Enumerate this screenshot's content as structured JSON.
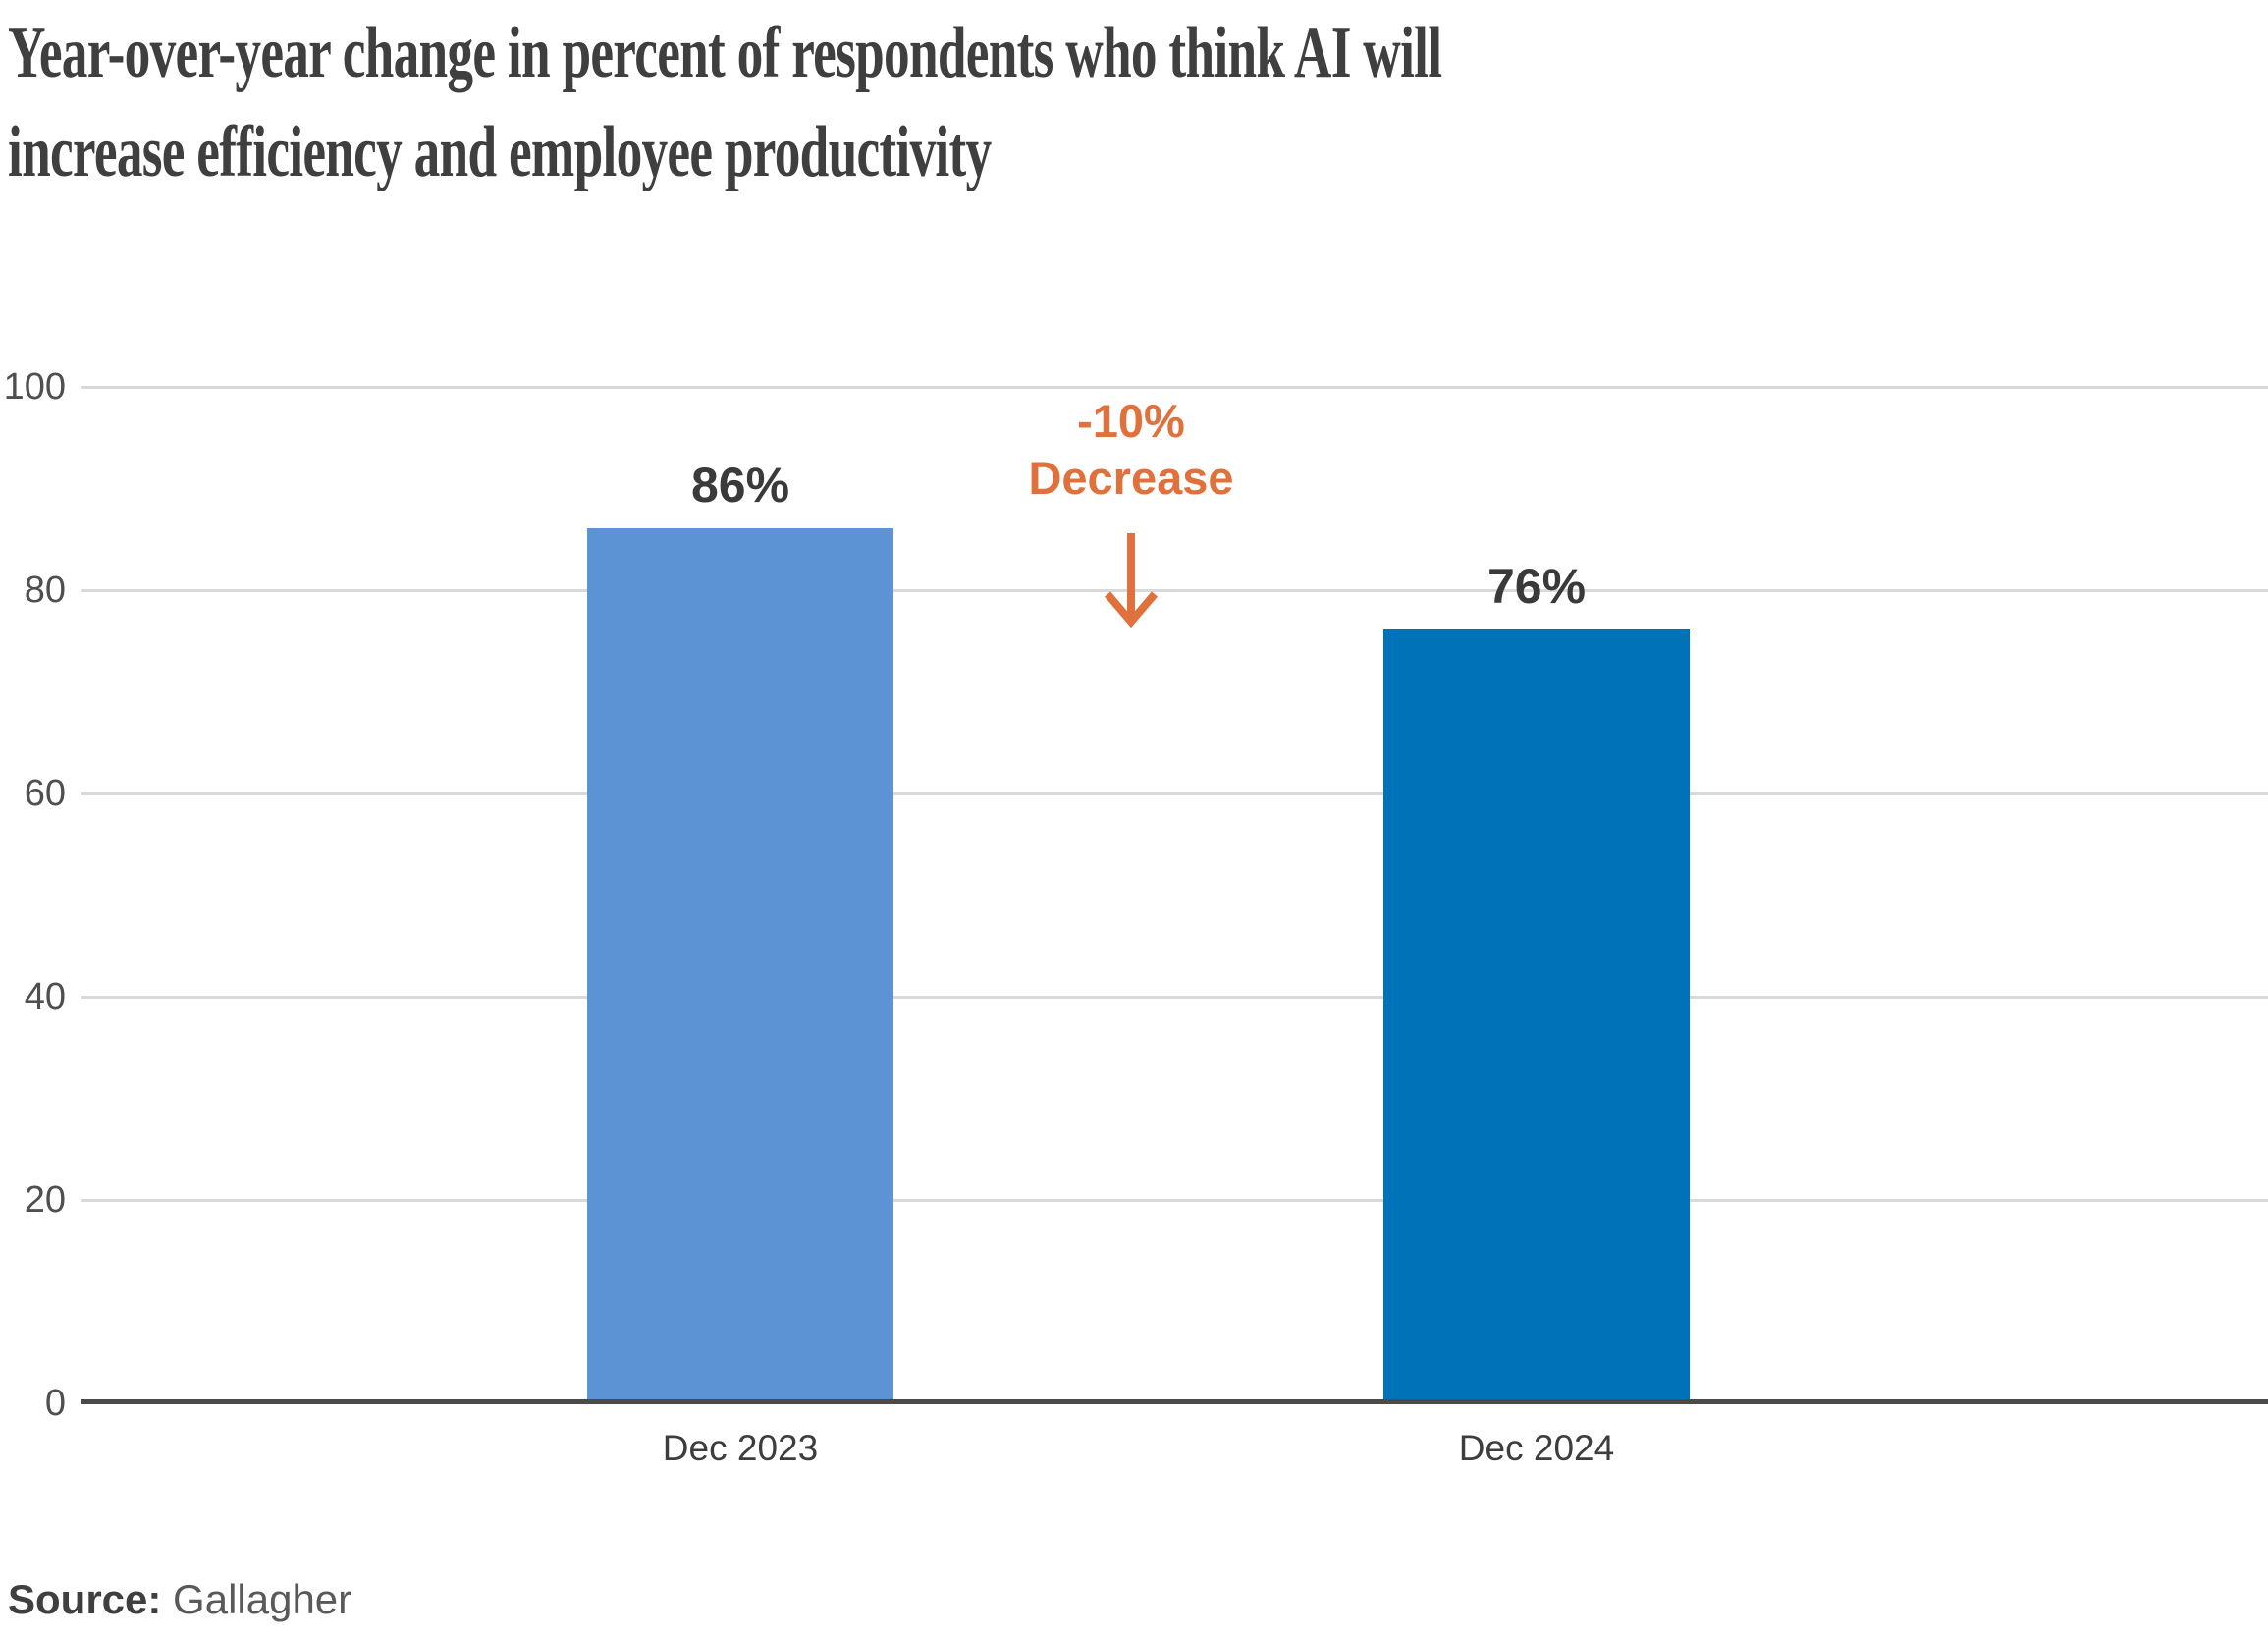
{
  "title": {
    "line1": "Year-over-year change in percent of respondents who think AI will",
    "line2": "increase efficiency and employee productivity"
  },
  "annotation": {
    "line1": "-10%",
    "line2": "Decrease",
    "arrow": "down-arrow"
  },
  "source": {
    "label": "Source:",
    "name": "Gallagher"
  },
  "colors": {
    "bar_2023": "#5B93D5",
    "bar_2024": "#0072B8",
    "accent_orange": "#E0703C",
    "gridline": "#D9D9D9",
    "axis": "#4A4A4A",
    "title_text": "#3F3F3F"
  },
  "chart_data": {
    "type": "bar",
    "title": "Year-over-year change in percent of respondents who think AI will increase efficiency and employee productivity",
    "categories": [
      "Dec 2023",
      "Dec 2024"
    ],
    "values": [
      86,
      76
    ],
    "value_labels": [
      "86%",
      "76%"
    ],
    "bar_colors": [
      "#5B93D5",
      "#0072B8"
    ],
    "xlabel": "",
    "ylabel": "",
    "ylim": [
      0,
      100
    ],
    "yticks": [
      100,
      80,
      60,
      40,
      20,
      0
    ],
    "grid": "horizontal-on",
    "legend": "none",
    "annotation": "-10% Decrease",
    "source": "Gallagher"
  }
}
